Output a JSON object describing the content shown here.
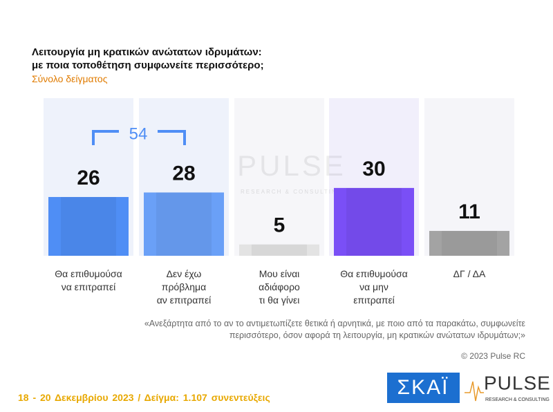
{
  "chart_data": {
    "type": "bar",
    "title": "Λειτουργία μη κρατικών ανώτατων ιδρυμάτων:\nμε ποια τοποθέτηση συμφωνείτε περισσότερο;",
    "subtitle": "Σύνολο δείγματος",
    "categories": [
      "Θα επιθυμούσα\nνα επιτραπεί",
      "Δεν έχω\nπρόβλημα\nαν επιτραπεί",
      "Μου είναι\nαδιάφορο\nτι θα γίνει",
      "Θα επιθυμούσα\nνα μην\nεπιτραπεί",
      "ΔΓ / ΔΑ"
    ],
    "values": [
      26,
      28,
      5,
      30,
      11
    ],
    "colors": [
      "#4f8ef5",
      "#6aa0f7",
      "#e3e3e3",
      "#7a4ff6",
      "#a3a3a3"
    ],
    "column_backgrounds": [
      "#eef2fb",
      "#eef2fb",
      "#f6f6f9",
      "#f1effb",
      "#f5f5f9"
    ],
    "annotation": {
      "value": 54,
      "color": "#4f8ef5"
    },
    "note": "«Ανεξάρτητα από το αν το αντιμετωπίζετε θετικά ή αρνητικά, με ποιο από τα παρακάτω, συμφωνείτε περισσότερο, όσον αφορά τη λειτουργία, μη κρατικών ανώτατων ιδρυμάτων;»",
    "copyright": "© 2023 Pulse RC",
    "footer": "18 - 20 Δεκεμβρίου  2023  /  Δείγμα:  1.107 συνεντεύξεις",
    "watermark": {
      "name": "PULSE",
      "tagline": "RESEARCH & CONSULTING"
    },
    "logos": {
      "skai": "ΣΚΑΪ",
      "pulse": "PULSE",
      "pulse_tagline": "RESEARCH & CONSULTING"
    }
  }
}
